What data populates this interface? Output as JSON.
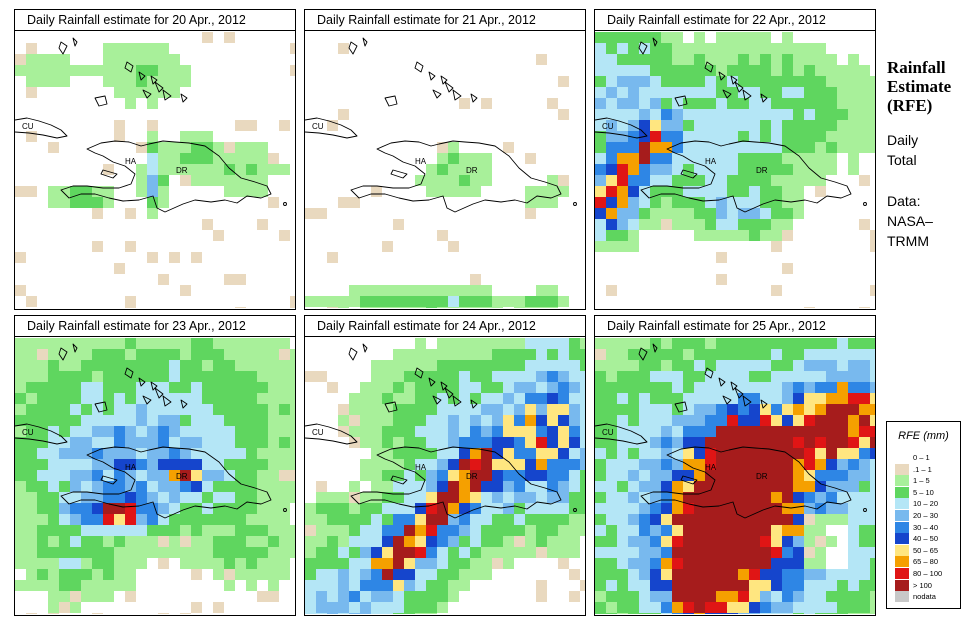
{
  "panels": [
    {
      "title": "Daily Rainfall estimate for  20 Apr., 2012",
      "day": 20
    },
    {
      "title": "Daily Rainfall estimate for  21 Apr., 2012",
      "day": 21
    },
    {
      "title": "Daily Rainfall estimate for  22 Apr., 2012",
      "day": 22
    },
    {
      "title": "Daily Rainfall estimate for  23 Apr., 2012",
      "day": 23
    },
    {
      "title": "Daily Rainfall estimate for  24 Apr., 2012",
      "day": 24
    },
    {
      "title": "Daily Rainfall estimate for  25 Apr., 2012",
      "day": 25
    }
  ],
  "map_labels": {
    "cu": "CU",
    "ha": "HA",
    "dr": "DR"
  },
  "side": {
    "title_lines": [
      "Rainfall",
      "Estimate",
      "(RFE)"
    ],
    "daily": "Daily",
    "total": "Total",
    "data_label": "Data:",
    "source_1": "NASA–",
    "source_2": "TRMM"
  },
  "legend": {
    "title": "RFE (mm)",
    "items": [
      {
        "label": "0 – 1",
        "color": "#ffffff"
      },
      {
        "label": ".1 – 1",
        "color": "#e9d9bf"
      },
      {
        "label": "1 – 5",
        "color": "#a8f09a"
      },
      {
        "label": "5 – 10",
        "color": "#5fd65f"
      },
      {
        "label": "10 – 20",
        "color": "#b4e6f6"
      },
      {
        "label": "20 – 30",
        "color": "#78b9ee"
      },
      {
        "label": "30 – 40",
        "color": "#2e86e5"
      },
      {
        "label": "40 – 50",
        "color": "#1545cc"
      },
      {
        "label": "50 – 65",
        "color": "#ffe680"
      },
      {
        "label": "65 – 80",
        "color": "#f5a000"
      },
      {
        "label": "80 – 100",
        "color": "#e01515"
      },
      {
        "label": "> 100",
        "color": "#a61c1c"
      },
      {
        "label": "nodata",
        "color": "#c8c8c8"
      }
    ]
  }
}
